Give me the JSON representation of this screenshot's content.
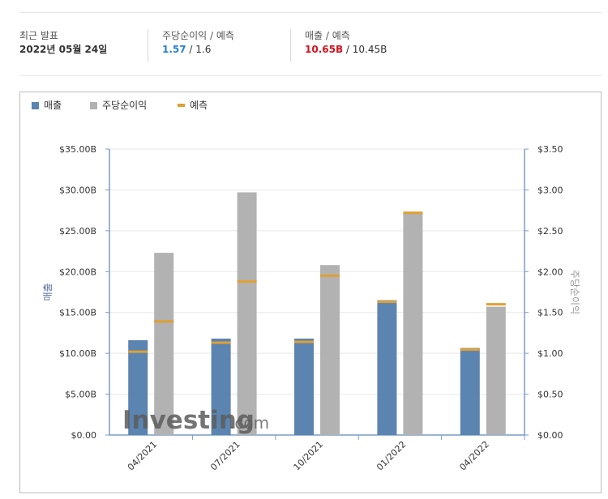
{
  "summary": {
    "recent": {
      "label": "최근 발표",
      "value": "2022년 05월 24일"
    },
    "eps": {
      "label": "주당순이익 / 예측",
      "actual": "1.57",
      "separator": " / ",
      "forecast": "1.6"
    },
    "revenue": {
      "label": "매출 / 예측",
      "actual": "10.65B",
      "separator": " / ",
      "forecast": "10.45B"
    }
  },
  "colors": {
    "revenue": "#5b84b1",
    "eps": "#b2b2b2",
    "forecast": "#e0a033",
    "axis": "#7a9cc6",
    "grid": "#e8e8e8"
  },
  "watermark": {
    "part1": "Investing",
    "part2": ".com"
  },
  "chart_data": {
    "type": "bar",
    "categories": [
      "04/2021",
      "07/2021",
      "10/2021",
      "01/2022",
      "04/2022"
    ],
    "series": [
      {
        "name": "매출",
        "axis": "left",
        "values": [
          11.6,
          11.8,
          11.8,
          16.5,
          10.65
        ]
      },
      {
        "name": "주당순이익",
        "axis": "right",
        "values": [
          2.23,
          2.97,
          2.08,
          2.72,
          1.57
        ]
      }
    ],
    "forecast": {
      "name": "예측",
      "revenue": [
        10.2,
        11.3,
        11.4,
        16.3,
        10.45
      ],
      "eps": [
        1.39,
        1.88,
        1.95,
        2.72,
        1.6
      ]
    },
    "ylabel_left": "매출",
    "ylabel_right": "주당순이익",
    "ylim_left": [
      0,
      35
    ],
    "ylim_right": [
      0,
      3.5
    ],
    "yticks_left": [
      "$0.00",
      "$5.00B",
      "$10.00B",
      "$15.00B",
      "$20.00B",
      "$25.00B",
      "$30.00B",
      "$35.00B"
    ],
    "yticks_right": [
      "$0.00",
      "$0.50",
      "$1.00",
      "$1.50",
      "$2.00",
      "$2.50",
      "$3.00",
      "$3.50"
    ],
    "legend": "top-left",
    "grid": true
  }
}
